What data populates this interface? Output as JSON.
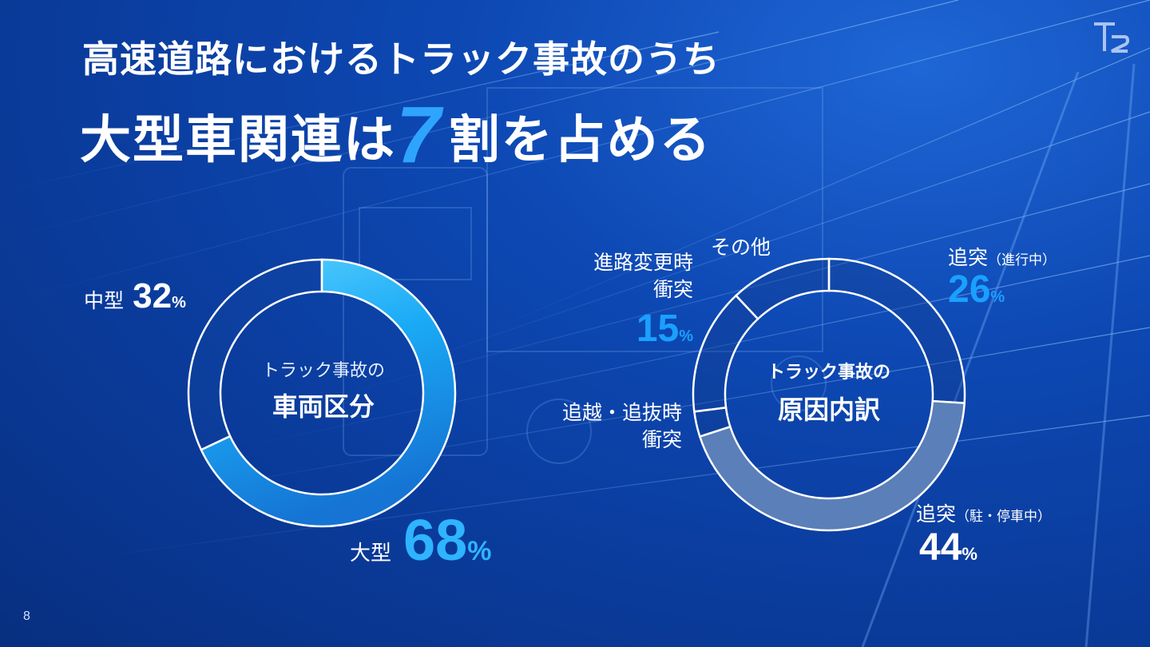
{
  "slide": {
    "title_line1": "高速道路におけるトラック事故のうち",
    "title_line2_pre": "大型車関連は",
    "title_highlight": "7",
    "title_line2_post": "割を占める",
    "page_number": "8",
    "logo_text": "T2"
  },
  "donut_left": {
    "center_line1": "トラック事故の",
    "center_line2": "車両区分",
    "labels": [
      {
        "name": "中型",
        "value": "32",
        "unit": "%"
      },
      {
        "name": "大型",
        "value": "68",
        "unit": "%"
      }
    ]
  },
  "donut_right": {
    "center_line1": "トラック事故の",
    "center_line2": "原因内訳",
    "labels": {
      "rear_running": {
        "name": "追突",
        "qualifier": "（進行中）",
        "value": "26",
        "unit": "%"
      },
      "rear_stopped": {
        "name": "追突",
        "qualifier": "（駐・停車中）",
        "value": "44",
        "unit": "%"
      },
      "lane_change": {
        "name_line1": "進路変更時",
        "name_line2": "衝突",
        "value": "15",
        "unit": "%"
      },
      "overtake": {
        "name_line1": "追越・追抜時",
        "name_line2": "衝突"
      },
      "other": {
        "name": "その他"
      }
    }
  },
  "colors": {
    "accent": "#1aa0ff",
    "large_gradient_start": "#5ad0ff",
    "large_gradient_end": "#1578d8",
    "rear_stopped_fill": "#5b7fb8"
  },
  "chart_data": [
    {
      "type": "pie",
      "title": "トラック事故の車両区分",
      "categories": [
        "大型",
        "中型"
      ],
      "values": [
        68,
        32
      ]
    },
    {
      "type": "pie",
      "title": "トラック事故の原因内訳",
      "categories": [
        "追突（進行中）",
        "追突（駐・停車中）",
        "追越・追抜時衝突",
        "進路変更時衝突",
        "その他"
      ],
      "values": [
        26,
        44,
        3,
        15,
        12
      ]
    }
  ]
}
